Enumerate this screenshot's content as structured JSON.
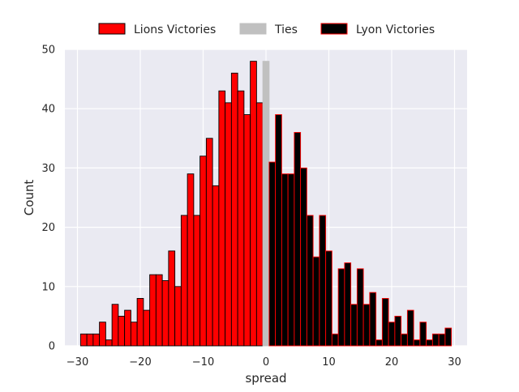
{
  "chart_data": {
    "type": "bar",
    "xlabel": "spread",
    "ylabel": "Count",
    "xlim": [
      -32,
      32
    ],
    "ylim": [
      0,
      50
    ],
    "xticks": [
      -30,
      -20,
      -10,
      0,
      10,
      20,
      30
    ],
    "xtick_labels": [
      "−30",
      "−20",
      "−10",
      "0",
      "10",
      "20",
      "30"
    ],
    "yticks": [
      0,
      10,
      20,
      30,
      40,
      50
    ],
    "ytick_labels": [
      "0",
      "10",
      "20",
      "30",
      "40",
      "50"
    ],
    "grid": true,
    "legend_position": "top-center",
    "series": [
      {
        "name": "Lions Victories",
        "color": "#ff0000",
        "edge_color": "#000000",
        "x": [
          -29,
          -28,
          -27,
          -26,
          -25,
          -24,
          -23,
          -22,
          -21,
          -20,
          -19,
          -18,
          -17,
          -16,
          -15,
          -14,
          -13,
          -12,
          -11,
          -10,
          -9,
          -8,
          -7,
          -6,
          -5,
          -4,
          -3,
          -2,
          -1
        ],
        "values": [
          2,
          2,
          2,
          4,
          1,
          7,
          5,
          6,
          4,
          8,
          6,
          12,
          12,
          11,
          16,
          10,
          22,
          29,
          22,
          32,
          35,
          27,
          43,
          41,
          46,
          43,
          39,
          48,
          41
        ]
      },
      {
        "name": "Ties",
        "color": "#c0c0c0",
        "edge_color": "#c0c0c0",
        "x": [
          0
        ],
        "values": [
          48
        ]
      },
      {
        "name": "Lyon Victories",
        "color": "#000000",
        "edge_color": "#ff0000",
        "x": [
          1,
          2,
          3,
          4,
          5,
          6,
          7,
          8,
          9,
          10,
          11,
          12,
          13,
          14,
          15,
          16,
          17,
          18,
          19,
          20,
          21,
          22,
          23,
          24,
          25,
          26,
          27,
          28,
          29
        ],
        "values": [
          31,
          39,
          29,
          29,
          36,
          30,
          22,
          15,
          22,
          16,
          2,
          13,
          14,
          7,
          13,
          7,
          9,
          1,
          8,
          4,
          5,
          2,
          6,
          1,
          4,
          1,
          2,
          2,
          3
        ]
      }
    ]
  }
}
